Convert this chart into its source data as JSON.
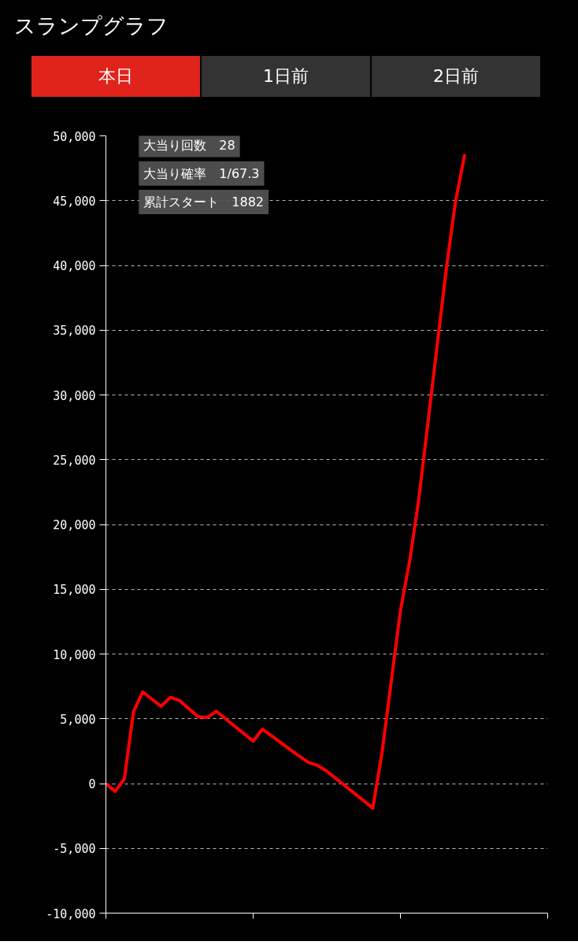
{
  "chart_data": {
    "type": "line",
    "title": "スランプグラフ",
    "annotations": [
      "本日",
      "1日前",
      "2日前",
      "大当り回数　28",
      "大当り確率　1/67.3",
      "累計スタート　1882"
    ],
    "categories": [
      null,
      null,
      null,
      null,
      null,
      null,
      null,
      null,
      null,
      null,
      null,
      null,
      null,
      null,
      null,
      null,
      null,
      null,
      null,
      null,
      null,
      null,
      null,
      null,
      null,
      null,
      null,
      null,
      null,
      null,
      null,
      null,
      null,
      null,
      null,
      null,
      null,
      null,
      null,
      null,
      null,
      null,
      null,
      null,
      null,
      null,
      null,
      null,
      null
    ],
    "series": [
      {
        "color": "#ff0000",
        "values": [
          0,
          -600,
          350,
          5560,
          7070,
          6520,
          5970,
          6660,
          6410,
          5790,
          5170,
          5100,
          5580,
          5000,
          4420,
          3850,
          3270,
          4200,
          3680,
          3160,
          2640,
          2120,
          1630,
          1400,
          960,
          390,
          -180,
          -750,
          -1320,
          -1890,
          2390,
          7870,
          13350,
          17160,
          21970,
          27920,
          33870,
          39820,
          45000,
          48600,
          null,
          null,
          null,
          null,
          null,
          null,
          null,
          null,
          null
        ]
      }
    ],
    "ylim": [
      -10000,
      50000
    ],
    "yticks": [
      {
        "value": -10000,
        "label": "-10,000"
      },
      {
        "value": -5000,
        "label": "-5,000"
      },
      {
        "value": 0,
        "label": "0"
      },
      {
        "value": 5000,
        "label": "5,000"
      },
      {
        "value": 10000,
        "label": "10,000"
      },
      {
        "value": 15000,
        "label": "15,000"
      },
      {
        "value": 20000,
        "label": "20,000"
      },
      {
        "value": 25000,
        "label": "25,000"
      },
      {
        "value": 30000,
        "label": "30,000"
      },
      {
        "value": 35000,
        "label": "35,000"
      },
      {
        "value": 40000,
        "label": "40,000"
      },
      {
        "value": 45000,
        "label": "45,000"
      },
      {
        "value": 50000,
        "label": "50,000"
      }
    ],
    "grid": "y",
    "marker": "none",
    "line_style": "solid"
  }
}
